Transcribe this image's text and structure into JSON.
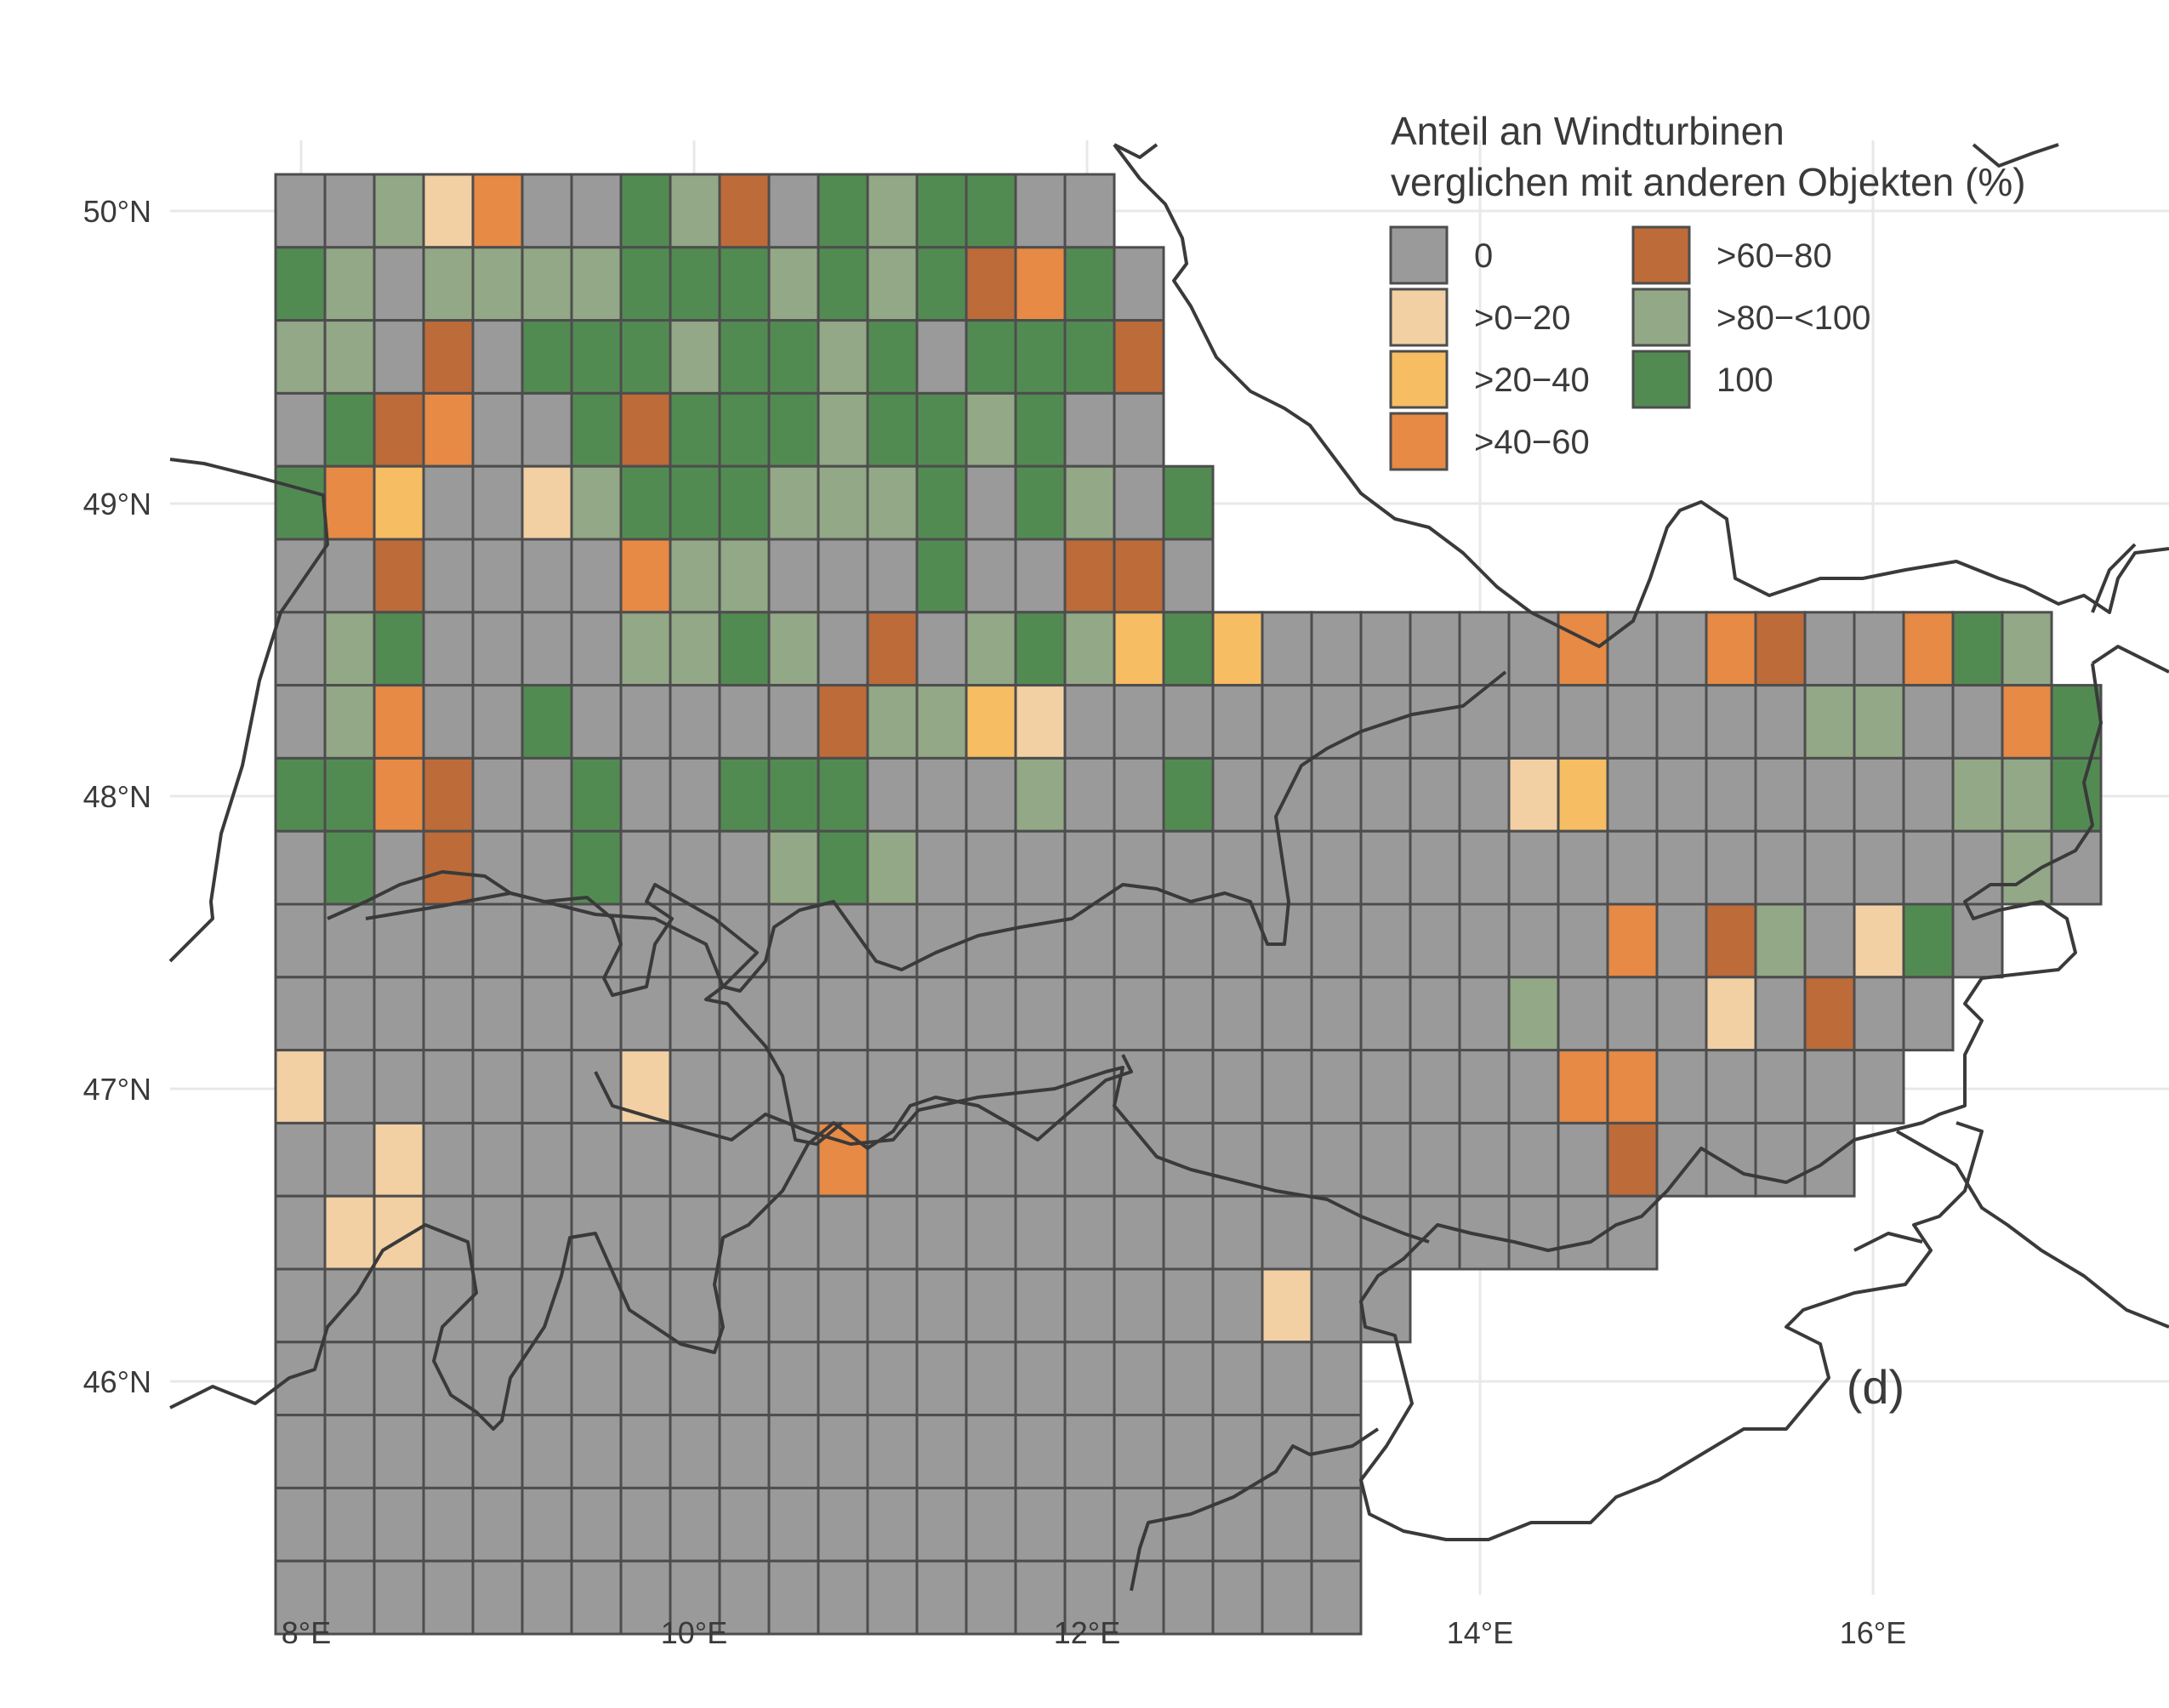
{
  "map": {
    "panel_label": "(d)",
    "x_ticks": [
      "8°E",
      "10°E",
      "12°E",
      "14°E",
      "16°E"
    ],
    "y_ticks": [
      "50°N",
      "49°N",
      "48°N",
      "47°N",
      "46°N"
    ],
    "x_tick_values": [
      8,
      10,
      12,
      14,
      16
    ],
    "y_tick_values": [
      50,
      49,
      48,
      47,
      46
    ]
  },
  "legend": {
    "title_line1": "Anteil an Windturbinen",
    "title_line2": "verglichen mit anderen Objekten (%)",
    "categories": [
      {
        "key": "a",
        "label": "0",
        "color": "#9a9a9a"
      },
      {
        "key": "b",
        "label": ">0−20",
        "color": "#f2d0a4"
      },
      {
        "key": "c",
        "label": ">20−40",
        "color": "#f6bd63"
      },
      {
        "key": "d",
        "label": ">40−60",
        "color": "#e68a45"
      },
      {
        "key": "e",
        "label": ">60−80",
        "color": "#bd6b39"
      },
      {
        "key": "f",
        "label": ">80−<100",
        "color": "#93a886"
      },
      {
        "key": "g",
        "label": "100",
        "color": "#528b52"
      }
    ]
  },
  "colors": {
    "cell_border": "#4d4d4d",
    "boundary": "#3a3a3a",
    "gridline": "#e6e6e6"
  }
}
